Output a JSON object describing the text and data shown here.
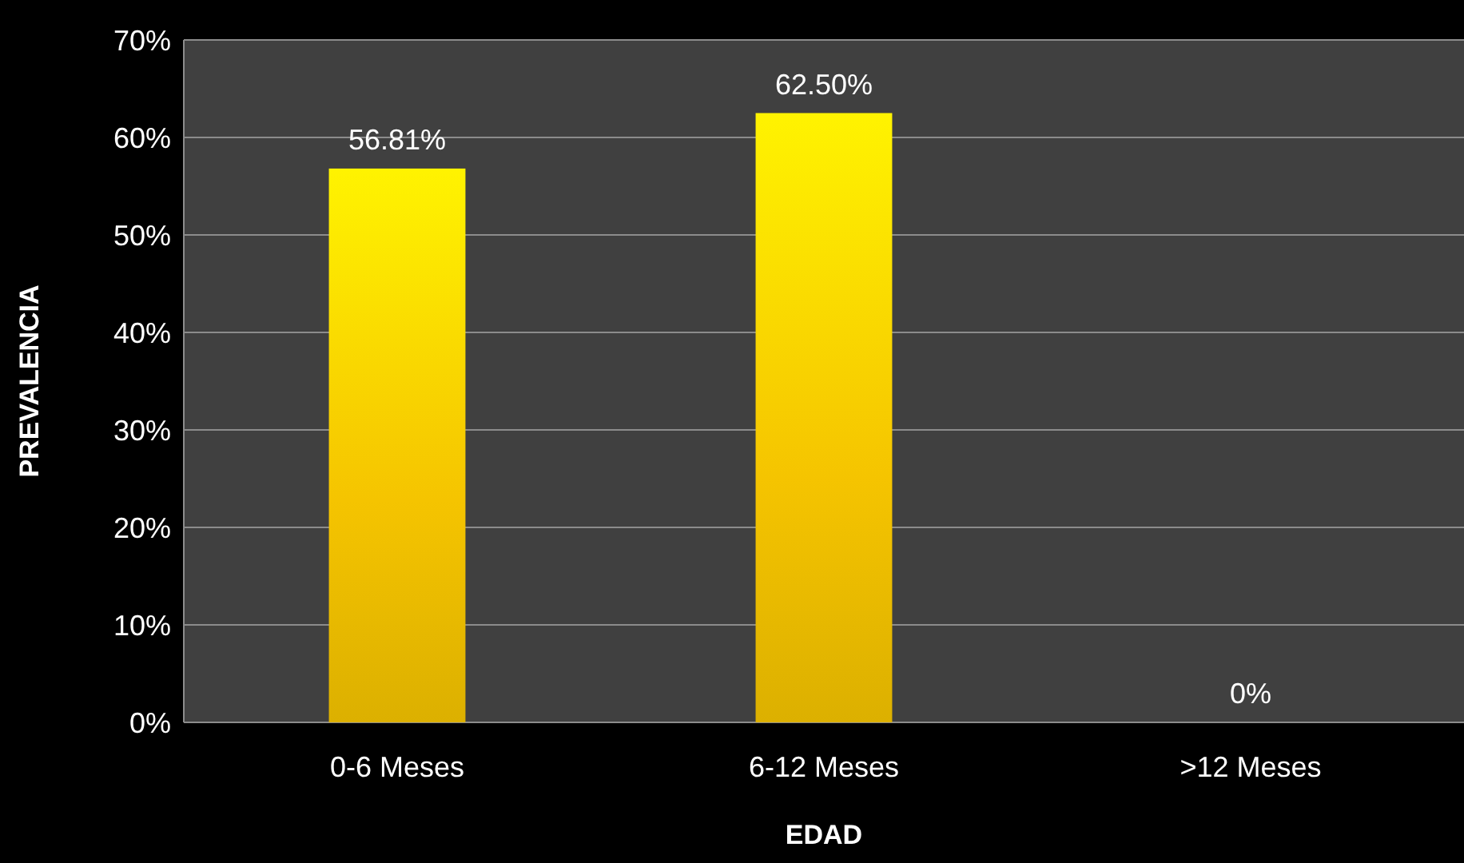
{
  "chart_data": {
    "type": "bar",
    "xlabel": "EDAD",
    "ylabel": "PREVALENCIA",
    "categories": [
      "0-6 Meses",
      "6-12 Meses",
      ">12 Meses"
    ],
    "values": [
      56.81,
      62.5,
      0
    ],
    "value_labels": [
      "56.81%",
      "62.50%",
      "0%"
    ],
    "color": "#f5c400",
    "ylim": [
      0,
      70
    ],
    "yticks": [
      {
        "value": 0,
        "label": "0%"
      },
      {
        "value": 10,
        "label": "10%"
      },
      {
        "value": 20,
        "label": "20%"
      },
      {
        "value": 30,
        "label": "30%"
      },
      {
        "value": 40,
        "label": "40%"
      },
      {
        "value": 50,
        "label": "50%"
      },
      {
        "value": 60,
        "label": "60%"
      },
      {
        "value": 70,
        "label": "70%"
      }
    ],
    "grid": "y"
  }
}
